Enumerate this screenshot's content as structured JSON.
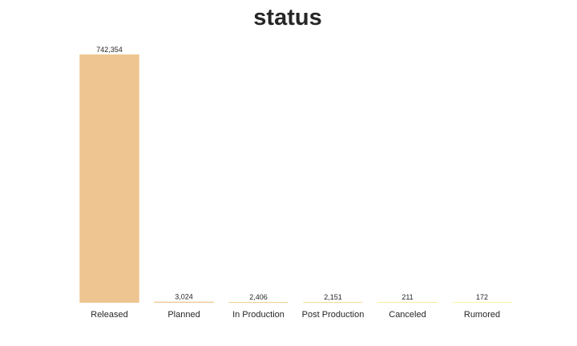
{
  "chart_data": {
    "type": "bar",
    "title": "status",
    "xlabel": "",
    "ylabel": "",
    "categories": [
      "Released",
      "Planned",
      "In Production",
      "Post Production",
      "Canceled",
      "Rumored"
    ],
    "values": [
      742354,
      3024,
      2406,
      2151,
      211,
      172
    ],
    "value_labels": [
      "742,354",
      "3,024",
      "2,406",
      "2,151",
      "211",
      "172"
    ],
    "ylim": [
      0,
      742354
    ],
    "grid": false,
    "legend": "none",
    "colors": [
      "#eec591",
      "#eec591",
      "#f0cf93",
      "#f3dc97",
      "#f8ec9f",
      "#fbf6a6"
    ]
  }
}
